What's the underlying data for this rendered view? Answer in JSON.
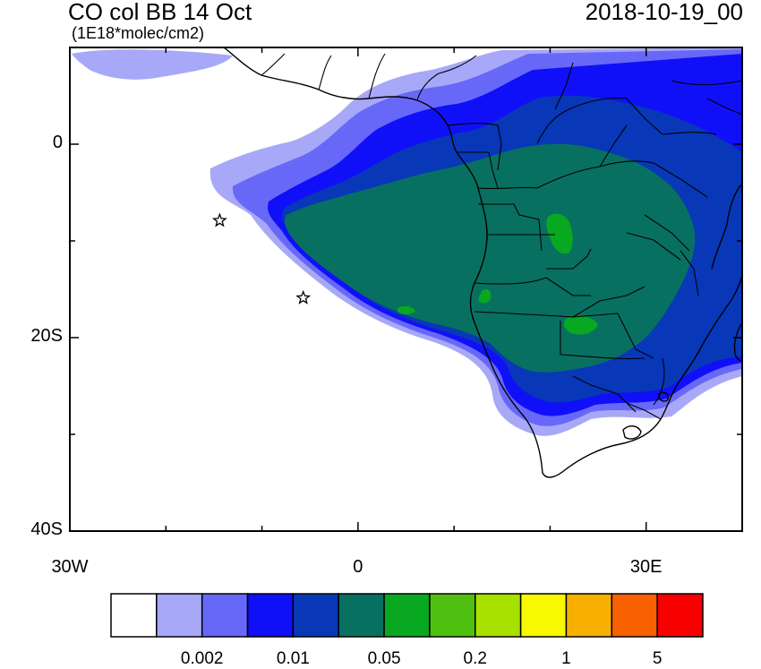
{
  "header": {
    "title": "CO col BB 14 Oct",
    "units": "(1E18*molec/cm2)",
    "datetime": "2018-10-19_00"
  },
  "map": {
    "lon_range": [
      -30,
      40
    ],
    "lat_range": [
      -40,
      10
    ],
    "lat_ticks": [
      {
        "lat": 0,
        "label": "0"
      },
      {
        "lat": -20,
        "label": "20S"
      },
      {
        "lat": -40,
        "label": "40S"
      }
    ],
    "lon_ticks": [
      {
        "lon": -30,
        "label": "30W"
      },
      {
        "lon": 0,
        "label": "0"
      },
      {
        "lon": 30,
        "label": "30E"
      }
    ],
    "markers": [
      {
        "name": "star",
        "lon": -14.4,
        "lat": -7.9
      },
      {
        "name": "star",
        "lon": -5.7,
        "lat": -15.9
      }
    ]
  },
  "colorbar": {
    "colors": [
      "#ffffff",
      "#a8a8f8",
      "#6868f8",
      "#1010f8",
      "#0838b8",
      "#087060",
      "#08a820",
      "#50c010",
      "#a8e000",
      "#f8f800",
      "#f8b000",
      "#f86000",
      "#f80000"
    ],
    "labels": [
      "0.002",
      "0.01",
      "0.05",
      "0.2",
      "1",
      "5"
    ]
  }
}
